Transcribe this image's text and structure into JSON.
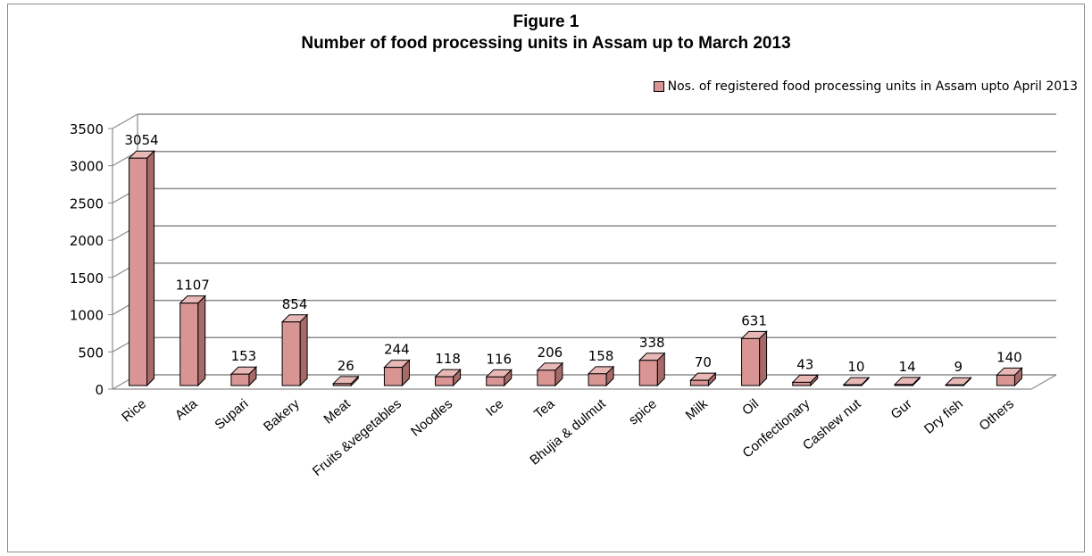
{
  "chart_data": {
    "type": "bar",
    "title": "Figure  1",
    "subtitle": "Number of food processing units in Assam  up to March 2013",
    "xlabel": "",
    "ylabel": "",
    "ylim": [
      0,
      3500
    ],
    "yticks": [
      0,
      500,
      1000,
      1500,
      2000,
      2500,
      3000,
      3500
    ],
    "grid": true,
    "legend_position": "top-right",
    "categories": [
      "Rice",
      "Atta",
      "Supari",
      "Bakery",
      "Meat",
      "Fruits &vegetables",
      "Noodles",
      "Ice",
      "Tea",
      "Bhujia & dulmut",
      "spice",
      "Milk",
      "Oil",
      "Confectionary",
      "Cashew nut",
      "Gur",
      "Dry fish",
      "Others"
    ],
    "series": [
      {
        "name": "Nos. of registered food processing units in Assam upto April 2013",
        "values": [
          3054,
          1107,
          153,
          854,
          26,
          244,
          118,
          116,
          206,
          158,
          338,
          70,
          631,
          43,
          10,
          14,
          9,
          140
        ],
        "color": "#d99594"
      }
    ]
  }
}
